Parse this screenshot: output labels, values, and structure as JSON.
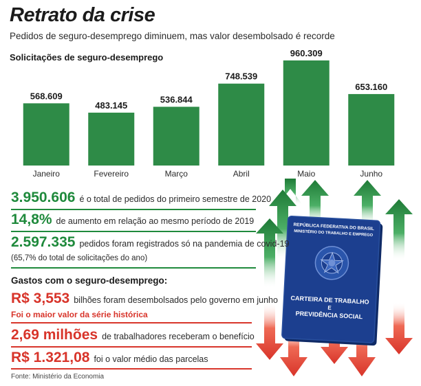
{
  "header": {
    "title": "Retrato da crise",
    "subtitle": "Pedidos de seguro-desemprego diminuem, mas valor desembolsado é recorde"
  },
  "chart_data": {
    "type": "bar",
    "title": "Solicitações de seguro-desemprego",
    "categories": [
      "Janeiro",
      "Fevereiro",
      "Março",
      "Abril",
      "Maio",
      "Junho"
    ],
    "values": [
      568609,
      483145,
      536844,
      748539,
      960309,
      653160
    ],
    "value_labels": [
      "568.609",
      "483.145",
      "536.844",
      "748.539",
      "960.309",
      "653.160"
    ],
    "ylim": [
      0,
      960309
    ],
    "grid": false,
    "color": "#2e8b47"
  },
  "stats": {
    "total": {
      "value": "3.950.606",
      "desc": "é o total de pedidos do primeiro semestre de 2020"
    },
    "increase": {
      "value": "14,8%",
      "desc": "de aumento em relação ao mesmo período de 2019"
    },
    "pandemic": {
      "value": "2.597.335",
      "desc": "pedidos foram registrados só na pandemia de covid-19",
      "note": "(65,7% do total de solicitações do ano)"
    }
  },
  "spending": {
    "title": "Gastos com o seguro-desemprego:",
    "disbursed": {
      "value": "R$ 3,553",
      "desc": "bilhões foram desembolsados pelo governo em junho",
      "note": "Foi o maior valor da série histórica"
    },
    "workers": {
      "value": "2,69 milhões",
      "desc": "de trabalhadores receberam o benefício"
    },
    "average": {
      "value": "R$ 1.321,08",
      "desc": "foi o valor médio das parcelas"
    }
  },
  "source": "Fonte: Ministério da Economia",
  "booklet": {
    "header_line1": "REPÚBLICA FEDERATIVA DO BRASIL",
    "header_line2": "MINISTÉRIO DO TRABALHO E EMPREGO",
    "title_line1": "CARTEIRA DE TRABALHO",
    "title_line2": "E",
    "title_line3": "PREVIDÊNCIA SOCIAL"
  },
  "colors": {
    "green": "#1f8a3c",
    "red": "#d8342a",
    "bar": "#2e8b47",
    "booklet": "#1c3f8f"
  }
}
